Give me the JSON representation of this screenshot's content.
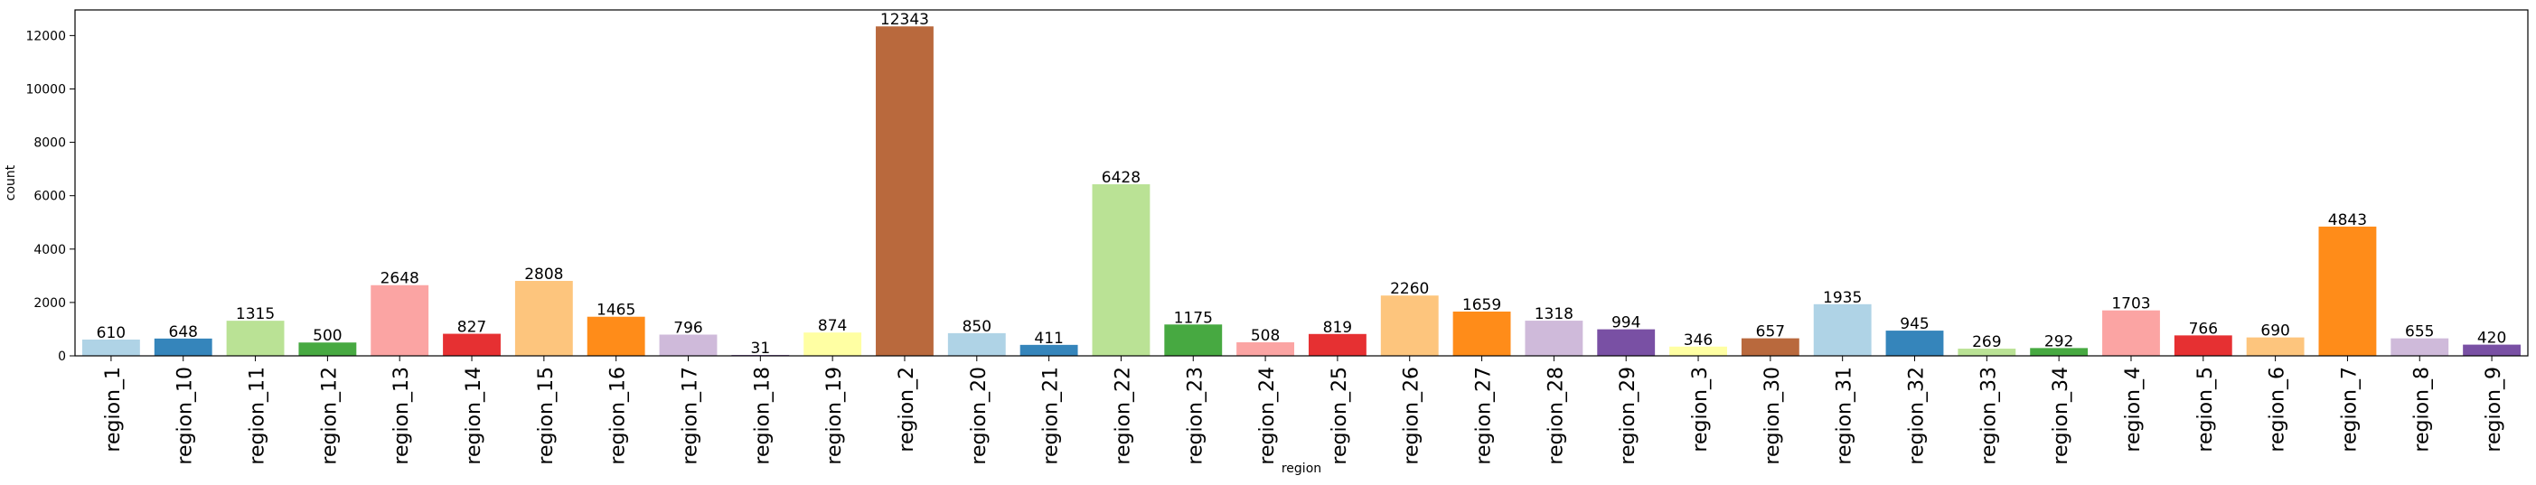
{
  "chart_data": {
    "type": "bar",
    "title": "",
    "xlabel": "region",
    "ylabel": "count",
    "ylim": [
      0,
      12960
    ],
    "yticks": [
      0,
      2000,
      4000,
      6000,
      8000,
      10000,
      12000
    ],
    "grid": false,
    "legend": "none",
    "categories": [
      "region_1",
      "region_10",
      "region_11",
      "region_12",
      "region_13",
      "region_14",
      "region_15",
      "region_16",
      "region_17",
      "region_18",
      "region_19",
      "region_2",
      "region_20",
      "region_21",
      "region_22",
      "region_23",
      "region_24",
      "region_25",
      "region_26",
      "region_27",
      "region_28",
      "region_29",
      "region_3",
      "region_30",
      "region_31",
      "region_32",
      "region_33",
      "region_34",
      "region_4",
      "region_5",
      "region_6",
      "region_7",
      "region_8",
      "region_9"
    ],
    "values": [
      610,
      648,
      1315,
      500,
      2648,
      827,
      2808,
      1465,
      796,
      31,
      874,
      12343,
      850,
      411,
      6428,
      1175,
      508,
      819,
      2260,
      1659,
      1318,
      994,
      346,
      657,
      1935,
      945,
      269,
      292,
      1703,
      766,
      690,
      4843,
      655,
      420
    ],
    "data_labels": [
      "610",
      "648",
      "1315",
      "500",
      "2648",
      "827",
      "2808",
      "1465",
      "796",
      "31",
      "874",
      "12343",
      "850",
      "411",
      "6428",
      "1175",
      "508",
      "819",
      "2260",
      "1659",
      "1318",
      "994",
      "346",
      "657",
      "1935",
      "945",
      "269",
      "292",
      "1703",
      "766",
      "690",
      "4843",
      "655",
      "420"
    ],
    "colors": [
      "#a6cee3",
      "#1f78b4",
      "#b2df8a",
      "#33a02c",
      "#fb9a99",
      "#e31a1c",
      "#fdbf6f",
      "#ff7f00",
      "#cab2d6",
      "#6a3d9a",
      "#ffff99",
      "#b15928",
      "#a6cee3",
      "#1f78b4",
      "#b2df8a",
      "#33a02c",
      "#fb9a99",
      "#e31a1c",
      "#fdbf6f",
      "#ff7f00",
      "#cab2d6",
      "#6a3d9a",
      "#ffff99",
      "#b15928",
      "#a6cee3",
      "#1f78b4",
      "#b2df8a",
      "#33a02c",
      "#fb9a99",
      "#e31a1c",
      "#fdbf6f",
      "#ff7f00",
      "#cab2d6",
      "#6a3d9a"
    ],
    "bar_alpha": 0.9
  }
}
